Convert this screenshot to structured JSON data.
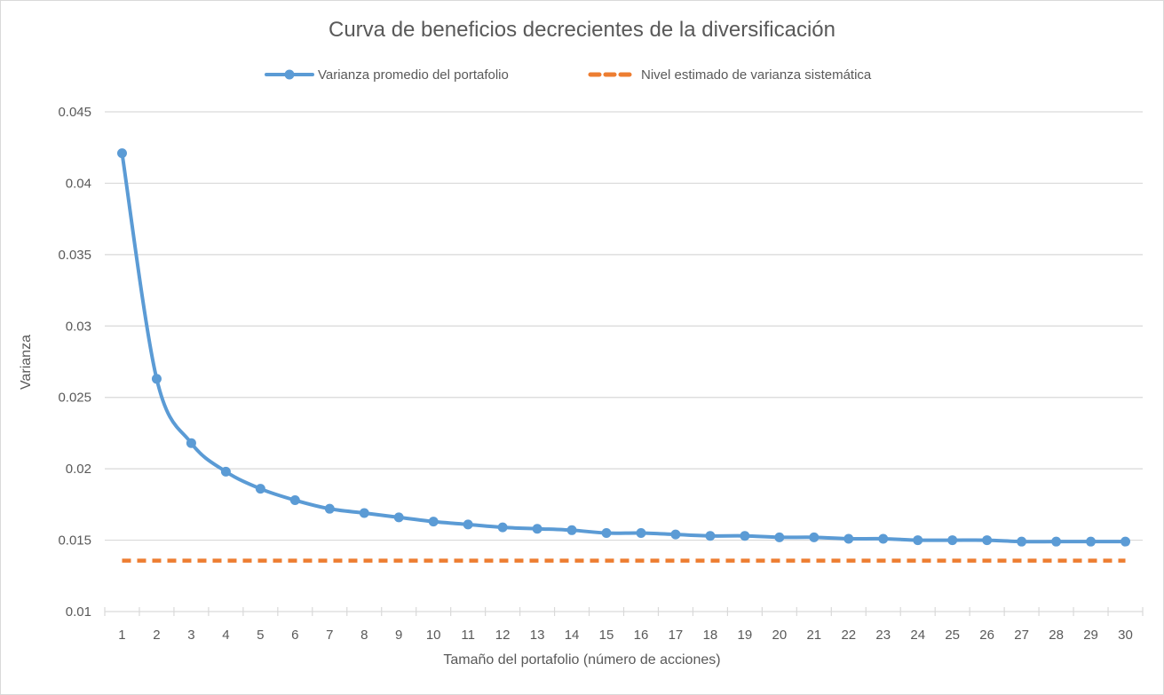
{
  "chart_data": {
    "type": "line",
    "title": "Curva de beneficios decrecientes de la diversificación",
    "xlabel": "Tamaño del portafolio (número de acciones)",
    "ylabel": "Varianza",
    "ylim": [
      0.01,
      0.045
    ],
    "yticks": [
      "0.01",
      "0.015",
      "0.02",
      "0.025",
      "0.03",
      "0.035",
      "0.04",
      "0.045"
    ],
    "grid": true,
    "legend_position": "top",
    "categories": [
      1,
      2,
      3,
      4,
      5,
      6,
      7,
      8,
      9,
      10,
      11,
      12,
      13,
      14,
      15,
      16,
      17,
      18,
      19,
      20,
      21,
      22,
      23,
      24,
      25,
      26,
      27,
      28,
      29,
      30
    ],
    "series": [
      {
        "name": "Varianza promedio del portafolio",
        "color": "#5b9bd5",
        "style": "solid-smooth-markers",
        "values": [
          0.0421,
          0.0263,
          0.0218,
          0.0198,
          0.0186,
          0.0178,
          0.0172,
          0.0169,
          0.0166,
          0.0163,
          0.0161,
          0.0159,
          0.0158,
          0.0157,
          0.0155,
          0.0155,
          0.0154,
          0.0153,
          0.0153,
          0.0152,
          0.0152,
          0.0151,
          0.0151,
          0.015,
          0.015,
          0.015,
          0.0149,
          0.0149,
          0.0149,
          0.0149
        ]
      },
      {
        "name": "Nivel estimado de varianza sistemática",
        "color": "#ed7d31",
        "style": "dashed",
        "values": [
          0.01357,
          0.01357,
          0.01357,
          0.01357,
          0.01357,
          0.01357,
          0.01357,
          0.01357,
          0.01357,
          0.01357,
          0.01357,
          0.01357,
          0.01357,
          0.01357,
          0.01357,
          0.01357,
          0.01357,
          0.01357,
          0.01357,
          0.01357,
          0.01357,
          0.01357,
          0.01357,
          0.01357,
          0.01357,
          0.01357,
          0.01357,
          0.01357,
          0.01357,
          0.01357
        ]
      }
    ]
  },
  "colors": {
    "series1": "#5b9bd5",
    "series2": "#ed7d31",
    "grid": "#d9d9d9",
    "text": "#595959"
  }
}
